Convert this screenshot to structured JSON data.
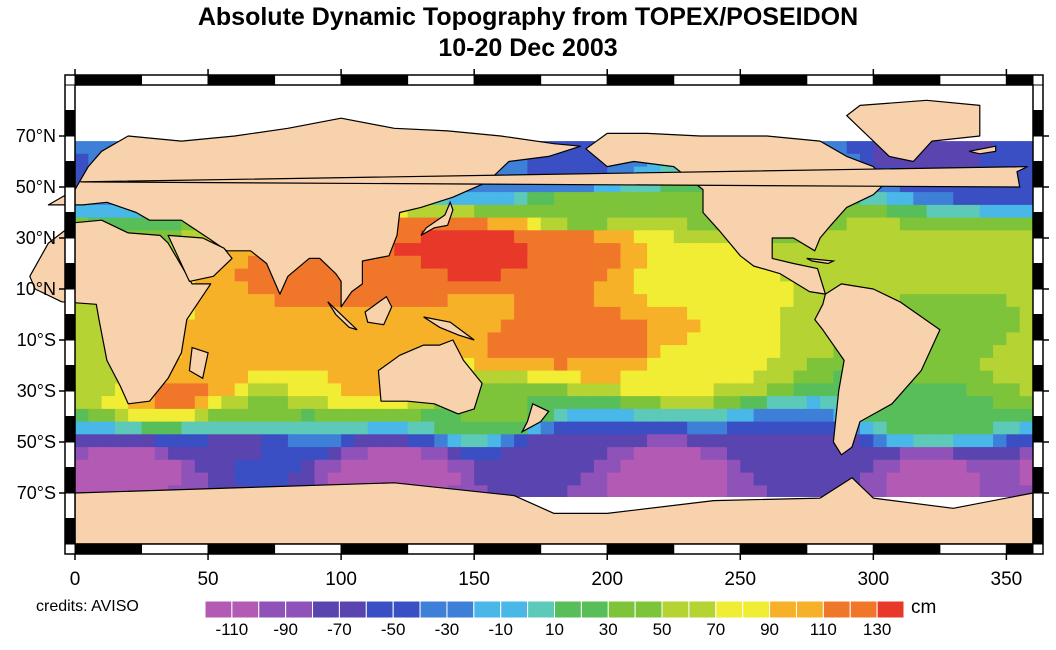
{
  "title_line1": "Absolute Dynamic Topography from TOPEX/POSEIDON",
  "title_line2": "10-20 Dec 2003",
  "credits": "credits: AVISO",
  "colorbar": {
    "unit": "cm",
    "ticks": [
      "-110",
      "-90",
      "-70",
      "-50",
      "-30",
      "-10",
      "10",
      "30",
      "50",
      "70",
      "90",
      "110",
      "130"
    ],
    "range": [
      -120,
      140
    ],
    "colors": [
      "#b35ab5",
      "#8f52b8",
      "#5a44b0",
      "#3a4fc4",
      "#3e7fd8",
      "#49b7e8",
      "#5dc9b8",
      "#58be5a",
      "#7ec43a",
      "#b5d332",
      "#f1ed35",
      "#f7b128",
      "#f0772a",
      "#e8382a"
    ]
  },
  "map": {
    "land_color": "#f8d2ac",
    "lat_labels": [
      "70°N",
      "50°N",
      "30°N",
      "10°N",
      "10°S",
      "30°S",
      "50°S",
      "70°S"
    ],
    "lon_labels": [
      "0",
      "50",
      "100",
      "150",
      "200",
      "250",
      "300",
      "350"
    ],
    "field": [
      {
        "lon": 20,
        "lat": -60,
        "value": -110
      },
      {
        "lon": 120,
        "lat": -62,
        "value": -110
      },
      {
        "lon": 220,
        "lat": -63,
        "value": -110
      },
      {
        "lon": 320,
        "lat": -63,
        "value": -105
      },
      {
        "lon": 60,
        "lat": -50,
        "value": -70
      },
      {
        "lon": 180,
        "lat": -52,
        "value": -75
      },
      {
        "lon": 280,
        "lat": -54,
        "value": -70
      },
      {
        "lon": 350,
        "lat": 55,
        "value": -60
      },
      {
        "lon": 325,
        "lat": 62,
        "value": -70
      },
      {
        "lon": 185,
        "lat": 57,
        "value": -50
      },
      {
        "lon": 155,
        "lat": 55,
        "value": -40
      },
      {
        "lon": 20,
        "lat": 62,
        "value": -30
      },
      {
        "lon": 140,
        "lat": 22,
        "value": 130
      },
      {
        "lon": 160,
        "lat": 25,
        "value": 125
      },
      {
        "lon": 185,
        "lat": 27,
        "value": 115
      },
      {
        "lon": 180,
        "lat": -8,
        "value": 115
      },
      {
        "lon": 205,
        "lat": -12,
        "value": 105
      },
      {
        "lon": 150,
        "lat": 0,
        "value": 100
      },
      {
        "lon": 125,
        "lat": 15,
        "value": 110
      },
      {
        "lon": 92,
        "lat": 15,
        "value": 110
      },
      {
        "lon": 80,
        "lat": -10,
        "value": 90
      },
      {
        "lon": 60,
        "lat": -15,
        "value": 90
      },
      {
        "lon": 40,
        "lat": -32,
        "value": 105
      },
      {
        "lon": 110,
        "lat": -25,
        "value": 85
      },
      {
        "lon": 240,
        "lat": 15,
        "value": 70
      },
      {
        "lon": 230,
        "lat": -20,
        "value": 70
      },
      {
        "lon": 300,
        "lat": 25,
        "value": 55
      },
      {
        "lon": 330,
        "lat": -5,
        "value": 45
      },
      {
        "lon": 345,
        "lat": 25,
        "value": 50
      },
      {
        "lon": 5,
        "lat": -20,
        "value": 50
      },
      {
        "lon": 260,
        "lat": 45,
        "value": 30
      },
      {
        "lon": 190,
        "lat": 40,
        "value": 40
      },
      {
        "lon": 160,
        "lat": -40,
        "value": 30
      },
      {
        "lon": 320,
        "lat": -40,
        "value": 25
      },
      {
        "lon": 60,
        "lat": -40,
        "value": 45
      }
    ]
  }
}
